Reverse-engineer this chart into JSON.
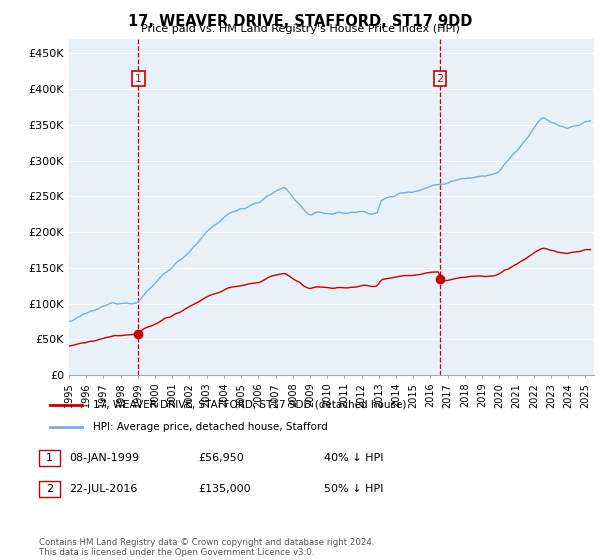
{
  "title": "17, WEAVER DRIVE, STAFFORD, ST17 9DD",
  "subtitle": "Price paid vs. HM Land Registry's House Price Index (HPI)",
  "ylabel_ticks": [
    "£0",
    "£50K",
    "£100K",
    "£150K",
    "£200K",
    "£250K",
    "£300K",
    "£350K",
    "£400K",
    "£450K"
  ],
  "ytick_values": [
    0,
    50000,
    100000,
    150000,
    200000,
    250000,
    300000,
    350000,
    400000,
    450000
  ],
  "ylim": [
    0,
    470000
  ],
  "xlim_start": 1995.0,
  "xlim_end": 2025.5,
  "purchase1_date": 1999.03,
  "purchase1_price": 56950,
  "purchase2_date": 2016.55,
  "purchase2_price": 135000,
  "vline_color": "#cc0000",
  "property_line_color": "#cc0000",
  "hpi_line_color": "#7ab0d8",
  "plot_bg_color": "#e8f0f8",
  "legend_label_property": "17, WEAVER DRIVE, STAFFORD, ST17 9DD (detached house)",
  "legend_label_hpi": "HPI: Average price, detached house, Stafford",
  "table_row1": [
    "1",
    "08-JAN-1999",
    "£56,950",
    "40% ↓ HPI"
  ],
  "table_row2": [
    "2",
    "22-JUL-2016",
    "£135,000",
    "50% ↓ HPI"
  ],
  "footer": "Contains HM Land Registry data © Crown copyright and database right 2024.\nThis data is licensed under the Open Government Licence v3.0.",
  "background_color": "#ffffff",
  "grid_color": "#ffffff"
}
